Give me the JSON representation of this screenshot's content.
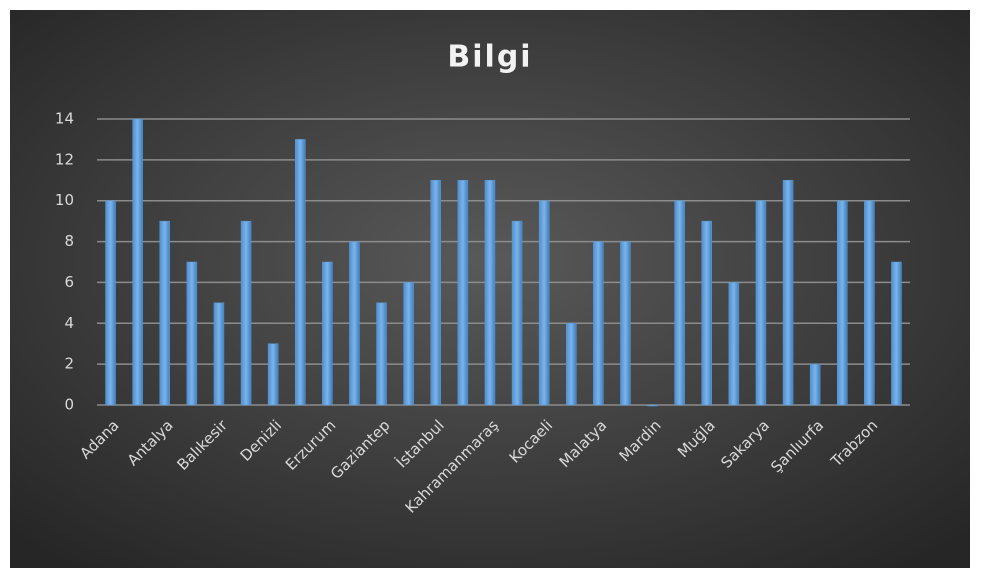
{
  "chart_data": {
    "type": "bar",
    "title": "Bilgi",
    "categories": [
      "Adana",
      null,
      "Antalya",
      null,
      "Balıkesir",
      null,
      "Denizli",
      null,
      "Erzurum",
      null,
      "Gaziantep",
      null,
      "İstanbul",
      null,
      "Kahramanmaraş",
      null,
      "Kocaeli",
      null,
      "Malatya",
      null,
      "Mardin",
      null,
      "Muğla",
      null,
      "Sakarya",
      null,
      "Şanlıurfa",
      null,
      "Trabzon",
      null
    ],
    "values": [
      10,
      14,
      9,
      7,
      5,
      9,
      3,
      13,
      7,
      8,
      5,
      6,
      11,
      11,
      11,
      9,
      10,
      4,
      8,
      8,
      0,
      10,
      9,
      6,
      10,
      11,
      2,
      10,
      10,
      7
    ],
    "color": "#5b9bd5",
    "ylim": [
      0,
      14
    ],
    "yticks": [
      0,
      2,
      4,
      6,
      8,
      10,
      12,
      14
    ],
    "grid": true
  }
}
